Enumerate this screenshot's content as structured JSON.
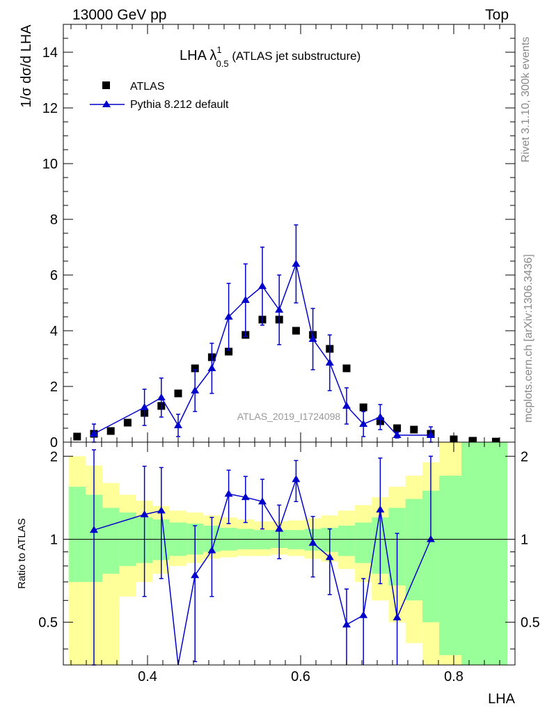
{
  "header": {
    "left": "13000 GeV pp",
    "right": "Top"
  },
  "side_text": {
    "top": "Rivet 3.1.10,  300k events",
    "bottom": "mcplots.cern.ch [arXiv:1306.3436]"
  },
  "watermark": "ATLAS_2019_I1724098",
  "chart_data": [
    {
      "type": "scatter",
      "title": "LHA λ",
      "title_sup": "1",
      "title_sub": "0.5",
      "title_rest": " (ATLAS jet substructure)",
      "ylabel_text": "1/σ dσ/d LHA",
      "xlim": [
        0.29,
        0.88
      ],
      "ylim": [
        0,
        15
      ],
      "yticks": [
        0,
        2,
        4,
        6,
        8,
        10,
        12,
        14
      ],
      "ytick_labels": [
        "0",
        "2",
        "4",
        "6",
        "8",
        "10",
        "12",
        "14"
      ],
      "legend": [
        {
          "name": "ATLAS",
          "marker": "square",
          "color": "#000000"
        },
        {
          "name": "Pythia 8.212 default",
          "marker": "triangle",
          "color": "#0000cc"
        }
      ],
      "series": [
        {
          "name": "ATLAS",
          "x": [
            0.308,
            0.33,
            0.352,
            0.374,
            0.396,
            0.418,
            0.44,
            0.462,
            0.484,
            0.506,
            0.528,
            0.55,
            0.572,
            0.594,
            0.616,
            0.638,
            0.66,
            0.682,
            0.704,
            0.726,
            0.748,
            0.77,
            0.8,
            0.825,
            0.855
          ],
          "y": [
            0.2,
            0.3,
            0.4,
            0.7,
            1.05,
            1.3,
            1.75,
            2.65,
            3.05,
            3.25,
            3.85,
            4.4,
            4.4,
            4.0,
            3.85,
            3.35,
            2.65,
            1.25,
            0.75,
            0.5,
            0.45,
            0.3,
            0.1,
            0.05,
            0.02
          ]
        },
        {
          "name": "Pythia 8.212 default",
          "x": [
            0.33,
            0.396,
            0.418,
            0.44,
            0.462,
            0.484,
            0.506,
            0.528,
            0.55,
            0.572,
            0.594,
            0.616,
            0.638,
            0.66,
            0.682,
            0.704,
            0.726,
            0.77
          ],
          "y": [
            0.3,
            1.25,
            1.6,
            0.6,
            1.85,
            2.65,
            4.5,
            5.1,
            5.6,
            4.75,
            6.4,
            3.7,
            2.85,
            1.3,
            0.65,
            0.9,
            0.25,
            0.25
          ],
          "err": [
            0.35,
            0.65,
            0.7,
            0.4,
            0.75,
            0.9,
            1.2,
            1.3,
            1.4,
            1.25,
            1.4,
            1.1,
            1.0,
            0.65,
            0.45,
            0.45,
            0.1,
            0.3
          ]
        }
      ]
    },
    {
      "type": "scatter",
      "ylabel": "Ratio to ATLAS",
      "xlabel": "LHA",
      "xlim": [
        0.29,
        0.88
      ],
      "ylim": [
        0.35,
        2.25
      ],
      "yticks": [
        0.5,
        1,
        2
      ],
      "ytick_labels": [
        "0.5",
        "1",
        "2"
      ],
      "xticks": [
        0.4,
        0.6,
        0.8
      ],
      "xtick_labels": [
        "0.4",
        "0.6",
        "0.8"
      ],
      "reference_line": 1,
      "bands": {
        "edges": [
          0.297,
          0.319,
          0.341,
          0.363,
          0.385,
          0.407,
          0.429,
          0.451,
          0.473,
          0.495,
          0.517,
          0.539,
          0.561,
          0.583,
          0.605,
          0.627,
          0.649,
          0.671,
          0.693,
          0.715,
          0.737,
          0.759,
          0.781,
          0.81,
          0.84,
          0.87
        ],
        "green_low": [
          0.7,
          0.7,
          0.75,
          0.8,
          0.82,
          0.84,
          0.87,
          0.88,
          0.9,
          0.91,
          0.92,
          0.92,
          0.93,
          0.92,
          0.91,
          0.9,
          0.87,
          0.82,
          0.75,
          0.68,
          0.6,
          0.5,
          0.38,
          0.35,
          0.35
        ],
        "green_high": [
          1.55,
          1.45,
          1.3,
          1.25,
          1.2,
          1.18,
          1.15,
          1.14,
          1.12,
          1.1,
          1.09,
          1.08,
          1.08,
          1.08,
          1.09,
          1.1,
          1.12,
          1.15,
          1.2,
          1.3,
          1.4,
          1.5,
          1.7,
          2.25,
          2.25
        ],
        "yellow_low": [
          0.35,
          0.35,
          0.35,
          0.62,
          0.7,
          0.75,
          0.8,
          0.82,
          0.85,
          0.86,
          0.87,
          0.87,
          0.88,
          0.87,
          0.85,
          0.83,
          0.78,
          0.7,
          0.6,
          0.5,
          0.42,
          0.35,
          0.35,
          0.35,
          0.35
        ],
        "yellow_high": [
          2.0,
          1.85,
          1.6,
          1.45,
          1.38,
          1.32,
          1.27,
          1.25,
          1.22,
          1.2,
          1.18,
          1.16,
          1.16,
          1.17,
          1.19,
          1.22,
          1.27,
          1.33,
          1.42,
          1.55,
          1.7,
          1.9,
          2.25,
          2.25,
          2.25
        ]
      },
      "series": [
        {
          "name": "Pythia 8.212 default",
          "x": [
            0.33,
            0.396,
            0.418,
            0.44,
            0.462,
            0.484,
            0.506,
            0.528,
            0.55,
            0.572,
            0.594,
            0.616,
            0.638,
            0.66,
            0.682,
            0.704,
            0.726,
            0.77
          ],
          "y": [
            1.08,
            1.23,
            1.27,
            0.3,
            0.74,
            0.91,
            1.46,
            1.42,
            1.37,
            1.09,
            1.65,
            0.97,
            0.86,
            0.49,
            0.53,
            1.28,
            0.52,
            1.0
          ],
          "err_low": [
            0.73,
            0.61,
            0.55,
            0.0,
            0.38,
            0.29,
            0.32,
            0.27,
            0.28,
            0.24,
            0.28,
            0.24,
            0.23,
            0.17,
            0.19,
            0.59,
            0.19,
            0.0
          ],
          "err_high": [
            1.03,
            0.61,
            0.55,
            0.0,
            0.38,
            0.29,
            0.32,
            0.27,
            0.28,
            0.24,
            0.28,
            0.24,
            0.23,
            0.17,
            0.19,
            0.69,
            0.53,
            1.0
          ]
        }
      ]
    }
  ]
}
